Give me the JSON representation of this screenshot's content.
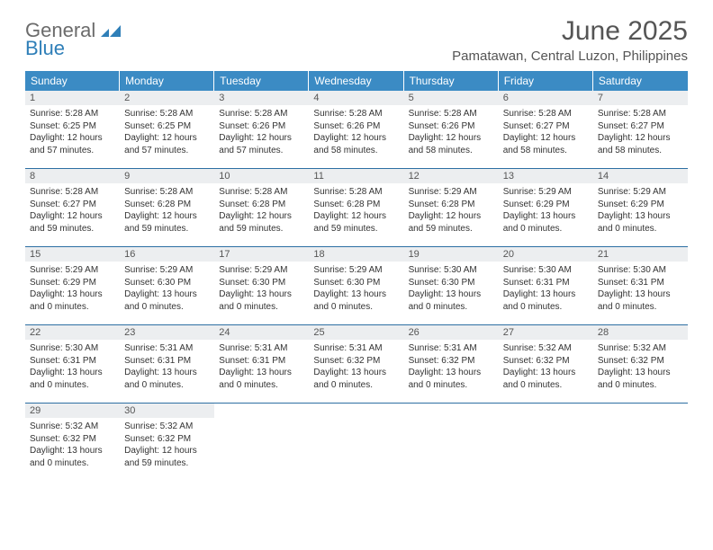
{
  "logo": {
    "line1": "General",
    "line2": "Blue"
  },
  "title": "June 2025",
  "location": "Pamatawan, Central Luzon, Philippines",
  "colors": {
    "header_bg": "#3b8bc4",
    "header_text": "#ffffff",
    "divider": "#2d6fa3",
    "daynum_bg": "#eceef0",
    "logo_gray": "#6b6b6b",
    "logo_blue": "#2f7fb8"
  },
  "weekdays": [
    "Sunday",
    "Monday",
    "Tuesday",
    "Wednesday",
    "Thursday",
    "Friday",
    "Saturday"
  ],
  "weeks": [
    [
      {
        "n": "1",
        "sr": "Sunrise: 5:28 AM",
        "ss": "Sunset: 6:25 PM",
        "d1": "Daylight: 12 hours",
        "d2": "and 57 minutes."
      },
      {
        "n": "2",
        "sr": "Sunrise: 5:28 AM",
        "ss": "Sunset: 6:25 PM",
        "d1": "Daylight: 12 hours",
        "d2": "and 57 minutes."
      },
      {
        "n": "3",
        "sr": "Sunrise: 5:28 AM",
        "ss": "Sunset: 6:26 PM",
        "d1": "Daylight: 12 hours",
        "d2": "and 57 minutes."
      },
      {
        "n": "4",
        "sr": "Sunrise: 5:28 AM",
        "ss": "Sunset: 6:26 PM",
        "d1": "Daylight: 12 hours",
        "d2": "and 58 minutes."
      },
      {
        "n": "5",
        "sr": "Sunrise: 5:28 AM",
        "ss": "Sunset: 6:26 PM",
        "d1": "Daylight: 12 hours",
        "d2": "and 58 minutes."
      },
      {
        "n": "6",
        "sr": "Sunrise: 5:28 AM",
        "ss": "Sunset: 6:27 PM",
        "d1": "Daylight: 12 hours",
        "d2": "and 58 minutes."
      },
      {
        "n": "7",
        "sr": "Sunrise: 5:28 AM",
        "ss": "Sunset: 6:27 PM",
        "d1": "Daylight: 12 hours",
        "d2": "and 58 minutes."
      }
    ],
    [
      {
        "n": "8",
        "sr": "Sunrise: 5:28 AM",
        "ss": "Sunset: 6:27 PM",
        "d1": "Daylight: 12 hours",
        "d2": "and 59 minutes."
      },
      {
        "n": "9",
        "sr": "Sunrise: 5:28 AM",
        "ss": "Sunset: 6:28 PM",
        "d1": "Daylight: 12 hours",
        "d2": "and 59 minutes."
      },
      {
        "n": "10",
        "sr": "Sunrise: 5:28 AM",
        "ss": "Sunset: 6:28 PM",
        "d1": "Daylight: 12 hours",
        "d2": "and 59 minutes."
      },
      {
        "n": "11",
        "sr": "Sunrise: 5:28 AM",
        "ss": "Sunset: 6:28 PM",
        "d1": "Daylight: 12 hours",
        "d2": "and 59 minutes."
      },
      {
        "n": "12",
        "sr": "Sunrise: 5:29 AM",
        "ss": "Sunset: 6:28 PM",
        "d1": "Daylight: 12 hours",
        "d2": "and 59 minutes."
      },
      {
        "n": "13",
        "sr": "Sunrise: 5:29 AM",
        "ss": "Sunset: 6:29 PM",
        "d1": "Daylight: 13 hours",
        "d2": "and 0 minutes."
      },
      {
        "n": "14",
        "sr": "Sunrise: 5:29 AM",
        "ss": "Sunset: 6:29 PM",
        "d1": "Daylight: 13 hours",
        "d2": "and 0 minutes."
      }
    ],
    [
      {
        "n": "15",
        "sr": "Sunrise: 5:29 AM",
        "ss": "Sunset: 6:29 PM",
        "d1": "Daylight: 13 hours",
        "d2": "and 0 minutes."
      },
      {
        "n": "16",
        "sr": "Sunrise: 5:29 AM",
        "ss": "Sunset: 6:30 PM",
        "d1": "Daylight: 13 hours",
        "d2": "and 0 minutes."
      },
      {
        "n": "17",
        "sr": "Sunrise: 5:29 AM",
        "ss": "Sunset: 6:30 PM",
        "d1": "Daylight: 13 hours",
        "d2": "and 0 minutes."
      },
      {
        "n": "18",
        "sr": "Sunrise: 5:29 AM",
        "ss": "Sunset: 6:30 PM",
        "d1": "Daylight: 13 hours",
        "d2": "and 0 minutes."
      },
      {
        "n": "19",
        "sr": "Sunrise: 5:30 AM",
        "ss": "Sunset: 6:30 PM",
        "d1": "Daylight: 13 hours",
        "d2": "and 0 minutes."
      },
      {
        "n": "20",
        "sr": "Sunrise: 5:30 AM",
        "ss": "Sunset: 6:31 PM",
        "d1": "Daylight: 13 hours",
        "d2": "and 0 minutes."
      },
      {
        "n": "21",
        "sr": "Sunrise: 5:30 AM",
        "ss": "Sunset: 6:31 PM",
        "d1": "Daylight: 13 hours",
        "d2": "and 0 minutes."
      }
    ],
    [
      {
        "n": "22",
        "sr": "Sunrise: 5:30 AM",
        "ss": "Sunset: 6:31 PM",
        "d1": "Daylight: 13 hours",
        "d2": "and 0 minutes."
      },
      {
        "n": "23",
        "sr": "Sunrise: 5:31 AM",
        "ss": "Sunset: 6:31 PM",
        "d1": "Daylight: 13 hours",
        "d2": "and 0 minutes."
      },
      {
        "n": "24",
        "sr": "Sunrise: 5:31 AM",
        "ss": "Sunset: 6:31 PM",
        "d1": "Daylight: 13 hours",
        "d2": "and 0 minutes."
      },
      {
        "n": "25",
        "sr": "Sunrise: 5:31 AM",
        "ss": "Sunset: 6:32 PM",
        "d1": "Daylight: 13 hours",
        "d2": "and 0 minutes."
      },
      {
        "n": "26",
        "sr": "Sunrise: 5:31 AM",
        "ss": "Sunset: 6:32 PM",
        "d1": "Daylight: 13 hours",
        "d2": "and 0 minutes."
      },
      {
        "n": "27",
        "sr": "Sunrise: 5:32 AM",
        "ss": "Sunset: 6:32 PM",
        "d1": "Daylight: 13 hours",
        "d2": "and 0 minutes."
      },
      {
        "n": "28",
        "sr": "Sunrise: 5:32 AM",
        "ss": "Sunset: 6:32 PM",
        "d1": "Daylight: 13 hours",
        "d2": "and 0 minutes."
      }
    ],
    [
      {
        "n": "29",
        "sr": "Sunrise: 5:32 AM",
        "ss": "Sunset: 6:32 PM",
        "d1": "Daylight: 13 hours",
        "d2": "and 0 minutes."
      },
      {
        "n": "30",
        "sr": "Sunrise: 5:32 AM",
        "ss": "Sunset: 6:32 PM",
        "d1": "Daylight: 12 hours",
        "d2": "and 59 minutes."
      },
      null,
      null,
      null,
      null,
      null
    ]
  ]
}
